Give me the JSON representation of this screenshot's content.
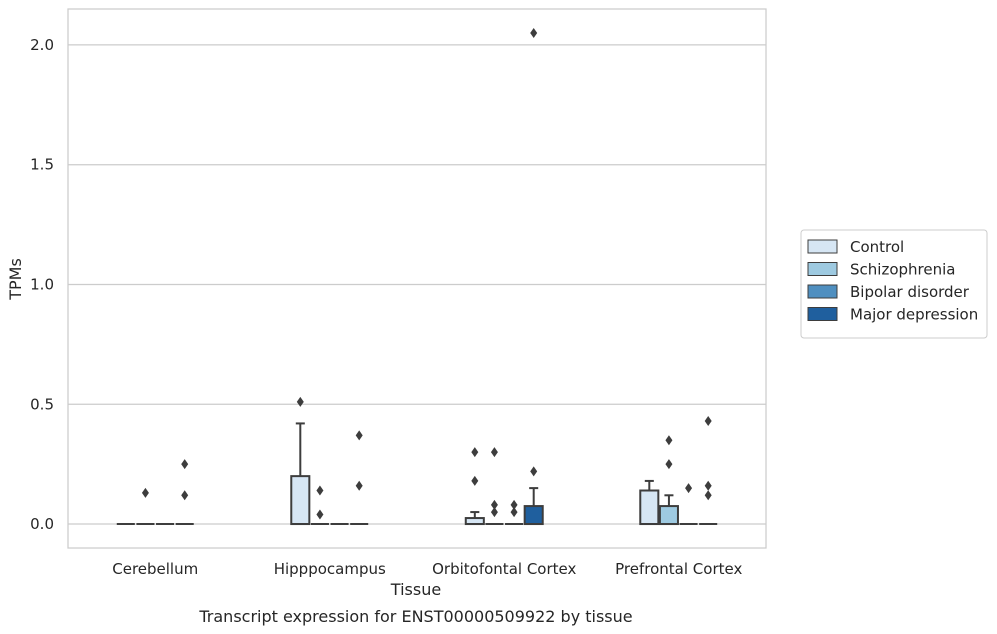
{
  "chart_data": {
    "type": "box",
    "title": "",
    "caption": "Transcript expression for ENST00000509922 by tissue",
    "xlabel": "Tissue",
    "ylabel": "TPMs",
    "ylim": [
      -0.1,
      2.15
    ],
    "yticks": [
      0.0,
      0.5,
      1.0,
      1.5,
      2.0
    ],
    "ytick_labels": [
      "0.0",
      "0.5",
      "1.0",
      "1.5",
      "2.0"
    ],
    "grid": "horizontal",
    "legend_position": "right",
    "categories": [
      "Cerebellum",
      "Hipppocampus",
      "Orbitofontal Cortex",
      "Prefrontal Cortex"
    ],
    "series": [
      {
        "name": "Control",
        "color": "#d6e6f4",
        "boxes": [
          {
            "q1": 0,
            "median": 0,
            "q3": 0,
            "whisker_low": 0,
            "whisker_high": 0,
            "outliers": []
          },
          {
            "q1": 0,
            "median": 0,
            "q3": 0.2,
            "whisker_low": 0,
            "whisker_high": 0.42,
            "outliers": [
              0.51
            ]
          },
          {
            "q1": 0,
            "median": 0,
            "q3": 0.025,
            "whisker_low": 0,
            "whisker_high": 0.05,
            "outliers": [
              0.18,
              0.3
            ]
          },
          {
            "q1": 0,
            "median": 0,
            "q3": 0.14,
            "whisker_low": 0,
            "whisker_high": 0.18,
            "outliers": []
          }
        ]
      },
      {
        "name": "Schizophrenia",
        "color": "#9ecae1",
        "boxes": [
          {
            "q1": 0,
            "median": 0,
            "q3": 0,
            "whisker_low": 0,
            "whisker_high": 0,
            "outliers": [
              0.13
            ]
          },
          {
            "q1": 0,
            "median": 0,
            "q3": 0,
            "whisker_low": 0,
            "whisker_high": 0,
            "outliers": [
              0.04,
              0.14
            ]
          },
          {
            "q1": 0,
            "median": 0,
            "q3": 0,
            "whisker_low": 0,
            "whisker_high": 0,
            "outliers": [
              0.05,
              0.08,
              0.3
            ]
          },
          {
            "q1": 0,
            "median": 0,
            "q3": 0.075,
            "whisker_low": 0,
            "whisker_high": 0.12,
            "outliers": [
              0.25,
              0.35
            ]
          }
        ]
      },
      {
        "name": "Bipolar disorder",
        "color": "#4f8fc0",
        "boxes": [
          {
            "q1": 0,
            "median": 0,
            "q3": 0,
            "whisker_low": 0,
            "whisker_high": 0,
            "outliers": []
          },
          {
            "q1": 0,
            "median": 0,
            "q3": 0,
            "whisker_low": 0,
            "whisker_high": 0,
            "outliers": []
          },
          {
            "q1": 0,
            "median": 0,
            "q3": 0,
            "whisker_low": 0,
            "whisker_high": 0,
            "outliers": [
              0.05,
              0.08
            ]
          },
          {
            "q1": 0,
            "median": 0,
            "q3": 0,
            "whisker_low": 0,
            "whisker_high": 0,
            "outliers": [
              0.15
            ]
          }
        ]
      },
      {
        "name": "Major depression",
        "color": "#1f5f9e",
        "boxes": [
          {
            "q1": 0,
            "median": 0,
            "q3": 0,
            "whisker_low": 0,
            "whisker_high": 0,
            "outliers": [
              0.12,
              0.25
            ]
          },
          {
            "q1": 0,
            "median": 0,
            "q3": 0,
            "whisker_low": 0,
            "whisker_high": 0,
            "outliers": [
              0.16,
              0.37
            ]
          },
          {
            "q1": 0,
            "median": 0,
            "q3": 0.075,
            "whisker_low": 0,
            "whisker_high": 0.15,
            "outliers": [
              0.22,
              2.05
            ]
          },
          {
            "q1": 0,
            "median": 0,
            "q3": 0,
            "whisker_low": 0,
            "whisker_high": 0,
            "outliers": [
              0.12,
              0.16,
              0.43
            ]
          }
        ]
      }
    ]
  }
}
